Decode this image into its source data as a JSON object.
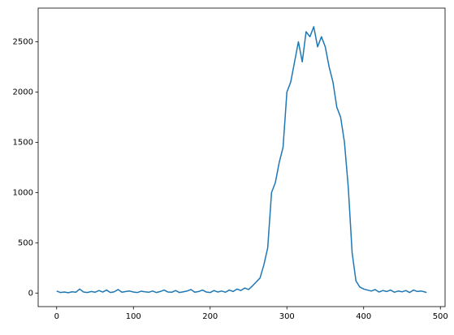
{
  "chart_data": {
    "type": "line",
    "x": [
      0,
      5,
      10,
      15,
      20,
      25,
      30,
      35,
      40,
      45,
      50,
      55,
      60,
      65,
      70,
      75,
      80,
      85,
      90,
      95,
      100,
      105,
      110,
      115,
      120,
      125,
      130,
      135,
      140,
      145,
      150,
      155,
      160,
      165,
      170,
      175,
      180,
      185,
      190,
      195,
      200,
      205,
      210,
      215,
      220,
      225,
      230,
      235,
      240,
      245,
      250,
      255,
      260,
      265,
      270,
      275,
      280,
      285,
      290,
      295,
      300,
      305,
      310,
      315,
      320,
      325,
      330,
      335,
      340,
      345,
      350,
      355,
      360,
      365,
      370,
      375,
      380,
      385,
      390,
      395,
      400,
      405,
      410,
      415,
      420,
      425,
      430,
      435,
      440,
      445,
      450,
      455,
      460,
      465,
      470,
      475,
      480,
      482
    ],
    "series": [
      {
        "color": "#1f77b4",
        "values": [
          20,
          5,
          10,
          3,
          12,
          8,
          40,
          10,
          5,
          15,
          8,
          25,
          10,
          30,
          5,
          12,
          35,
          8,
          15,
          20,
          10,
          5,
          18,
          12,
          8,
          20,
          5,
          15,
          30,
          10,
          8,
          25,
          5,
          12,
          20,
          35,
          8,
          15,
          30,
          10,
          5,
          25,
          10,
          20,
          8,
          30,
          15,
          40,
          25,
          50,
          35,
          70,
          110,
          150,
          280,
          450,
          1000,
          1100,
          1300,
          1450,
          2000,
          2100,
          2300,
          2500,
          2300,
          2600,
          2550,
          2650,
          2450,
          2550,
          2450,
          2250,
          2100,
          1850,
          1750,
          1500,
          1050,
          400,
          120,
          60,
          40,
          30,
          20,
          35,
          10,
          25,
          15,
          30,
          8,
          20,
          12,
          25,
          5,
          30,
          15,
          20,
          10,
          5
        ]
      }
    ],
    "xlim": [
      -24.1,
      506.1
    ],
    "xticks": [
      0,
      100,
      200,
      300,
      400,
      500
    ],
    "ylim": [
      -135,
      2835
    ],
    "yticks": [
      0,
      500,
      1000,
      1500,
      2000,
      2500
    ]
  }
}
